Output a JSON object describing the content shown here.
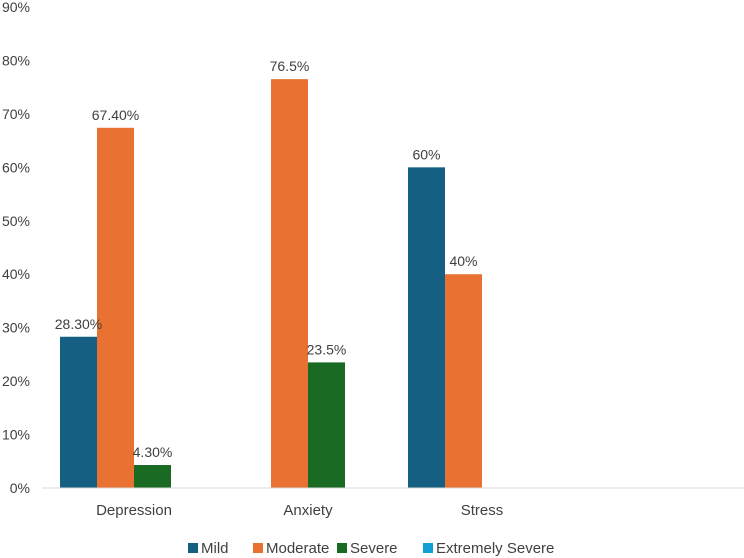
{
  "chart_data": {
    "type": "bar",
    "title": "",
    "xlabel": "",
    "ylabel": "",
    "categories": [
      "Depression",
      "Anxiety",
      "Stress"
    ],
    "ylim": [
      0,
      90
    ],
    "yticks": [
      0,
      10,
      20,
      30,
      40,
      50,
      60,
      70,
      80,
      90
    ],
    "ytick_labels": [
      "0%",
      "10%",
      "20%",
      "30%",
      "40%",
      "50%",
      "60%",
      "70%",
      "80%",
      "90%"
    ],
    "grid": false,
    "legend_position": "bottom",
    "series": [
      {
        "name": "Mild",
        "color": "#156082",
        "values": [
          28.3,
          null,
          60
        ],
        "labels": [
          "28.30%",
          "",
          "60%"
        ]
      },
      {
        "name": "Moderate",
        "color": "#e97132",
        "values": [
          67.4,
          76.5,
          40
        ],
        "labels": [
          "67.40%",
          "76.5%",
          "40%"
        ]
      },
      {
        "name": "Severe",
        "color": "#196b24",
        "values": [
          4.3,
          23.5,
          null
        ],
        "labels": [
          "4.30%",
          "23.5%",
          ""
        ]
      },
      {
        "name": "Extremely Severe",
        "color": "#0f9ed5",
        "values": [
          null,
          null,
          null
        ],
        "labels": [
          "",
          "",
          ""
        ]
      }
    ]
  }
}
